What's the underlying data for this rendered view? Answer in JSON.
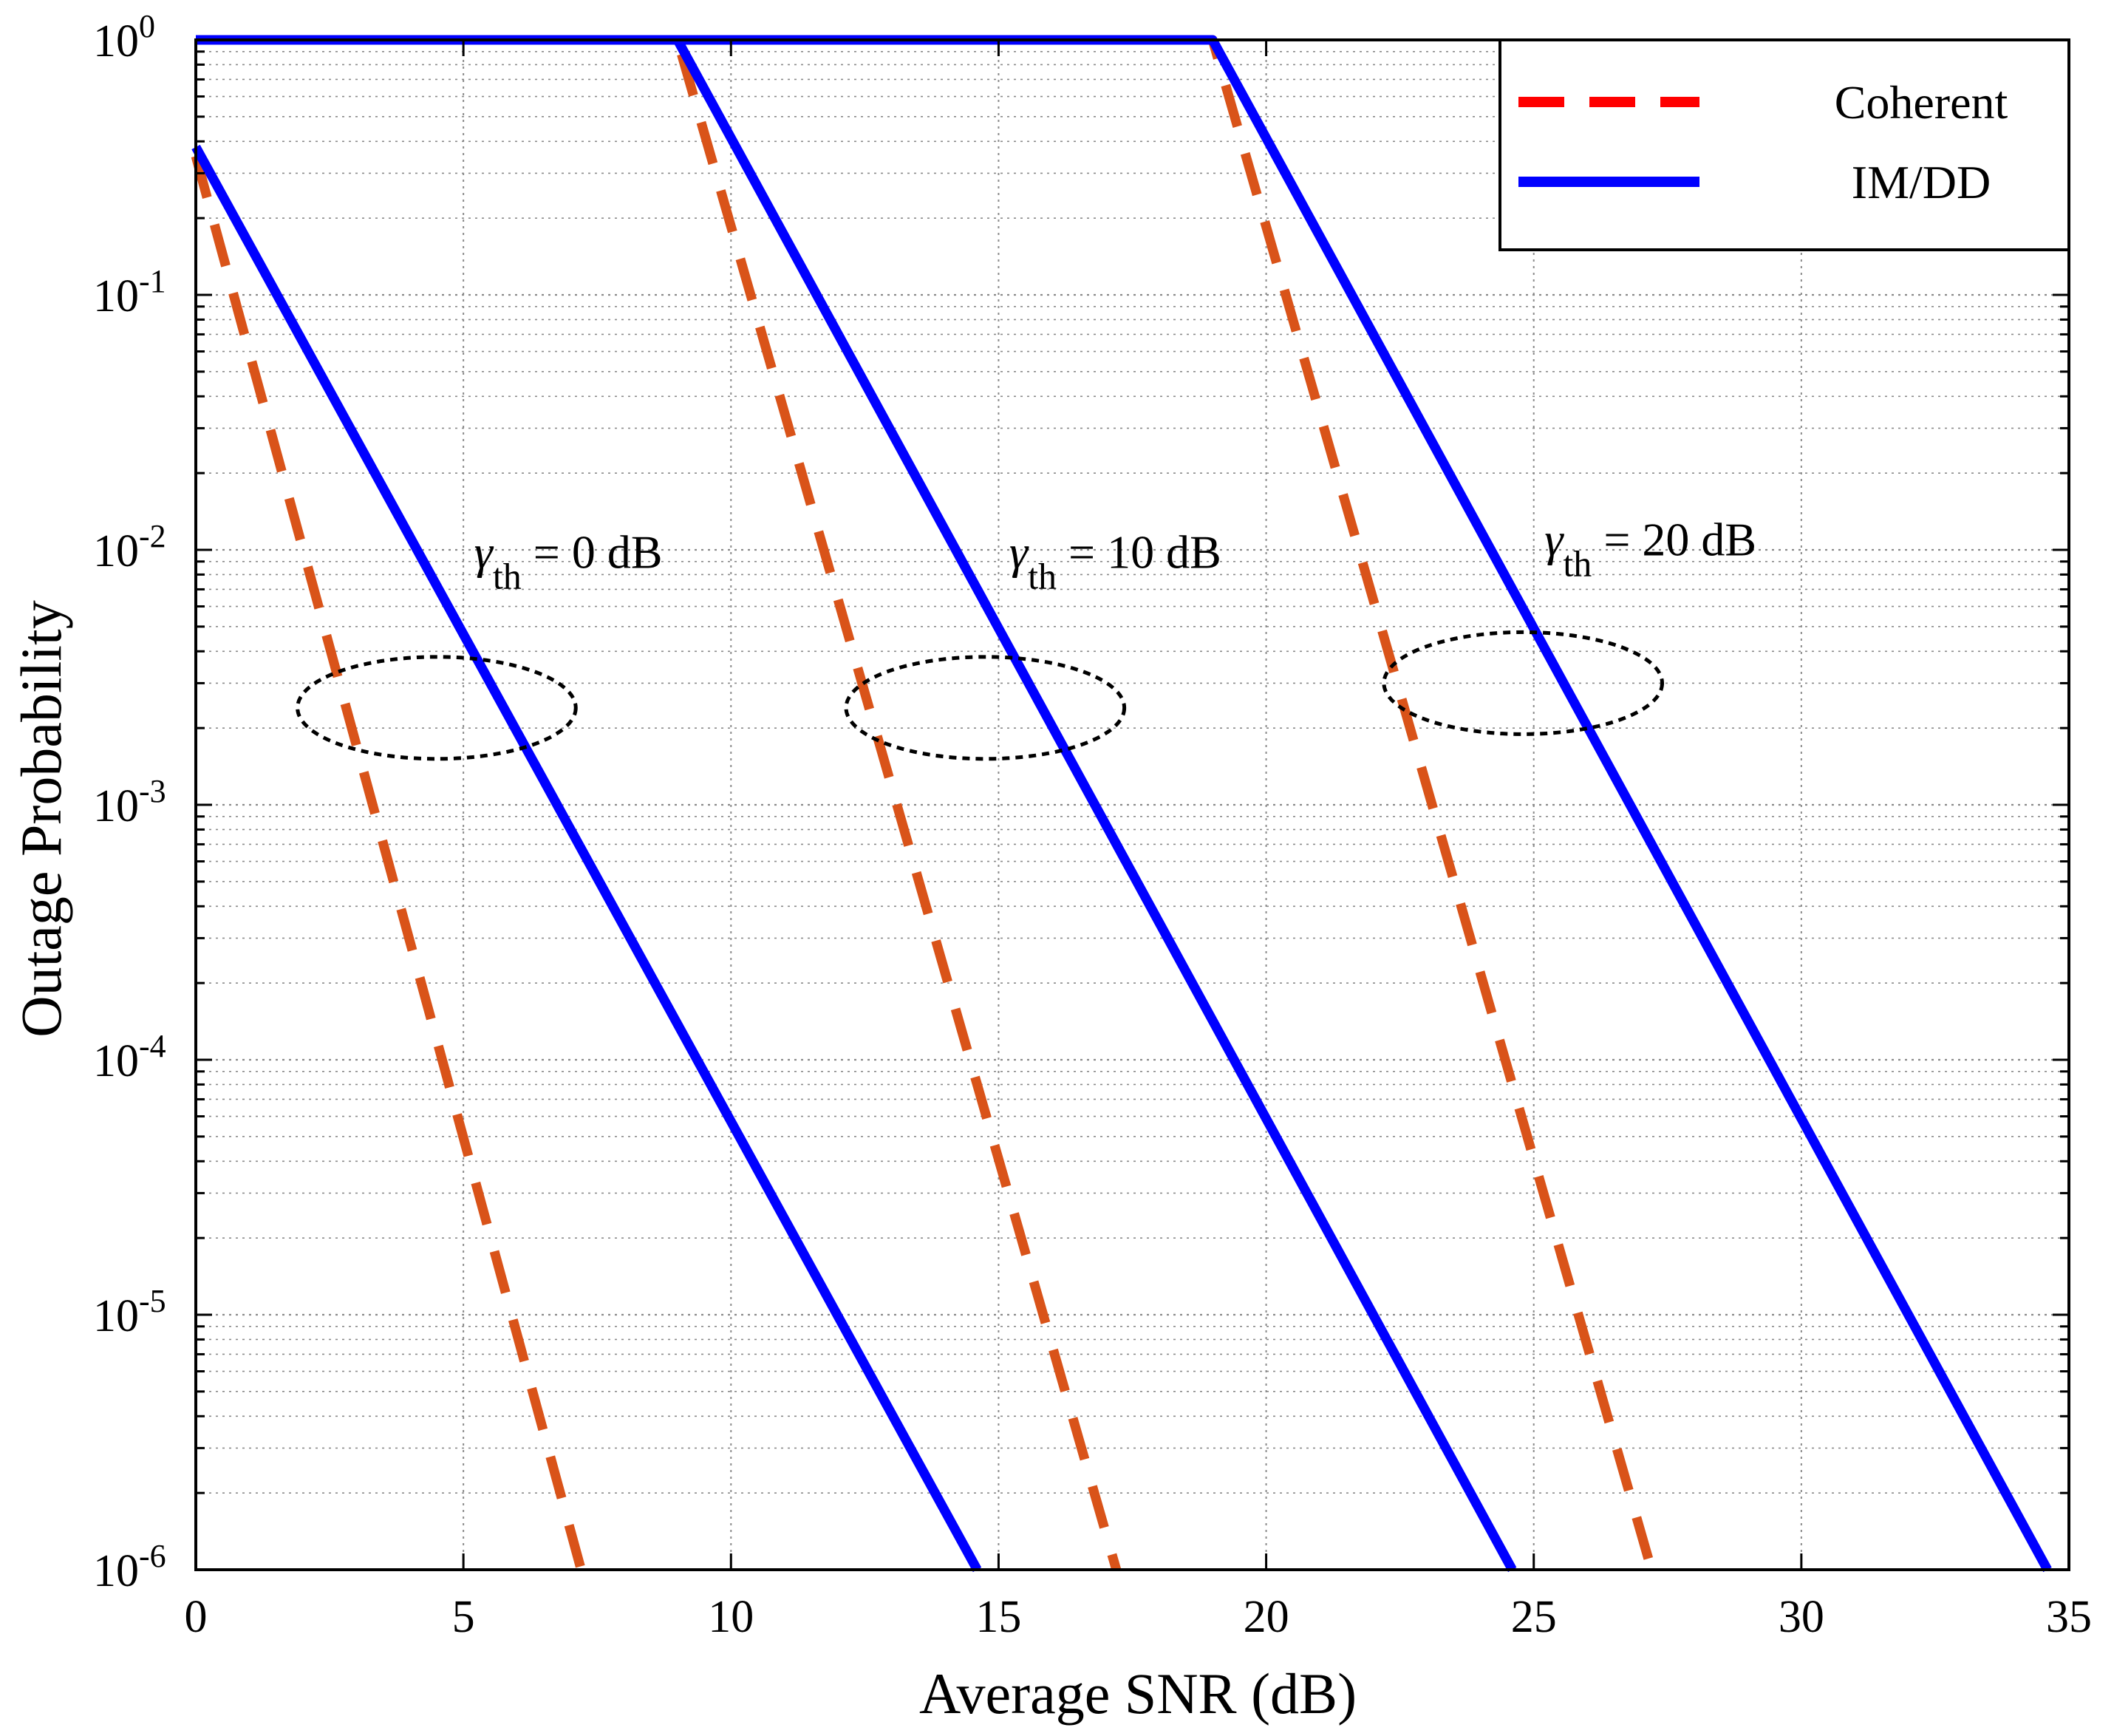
{
  "chart_data": {
    "type": "line",
    "title": "",
    "xlabel": "Average SNR (dB)",
    "ylabel": "Outage Probability",
    "xlim": [
      0,
      35
    ],
    "ylim": [
      1e-06,
      1
    ],
    "yscale": "log",
    "grid": true,
    "legend_position": "top-right",
    "x_ticks": [
      "0",
      "5",
      "10",
      "15",
      "20",
      "25",
      "30",
      "35"
    ],
    "y_ticks": [
      {
        "base": "10",
        "exp": "0"
      },
      {
        "base": "10",
        "exp": "-1"
      },
      {
        "base": "10",
        "exp": "-2"
      },
      {
        "base": "10",
        "exp": "-3"
      },
      {
        "base": "10",
        "exp": "-4"
      },
      {
        "base": "10",
        "exp": "-5"
      },
      {
        "base": "10",
        "exp": "-6"
      }
    ],
    "series": [
      {
        "name": "Coherent",
        "legend": "Coherent",
        "color": "#d95319",
        "legend_color": "#ff0000",
        "style": "dashed",
        "curves": [
          {
            "gamma_th_dB": 0,
            "x": [
              0,
              7.2
            ],
            "y": [
              0.35,
              1e-06
            ]
          },
          {
            "gamma_th_dB": 10,
            "x": [
              0,
              9,
              17.2
            ],
            "y": [
              1,
              1,
              1e-06
            ]
          },
          {
            "gamma_th_dB": 20,
            "x": [
              0,
              19,
              27.2
            ],
            "y": [
              1,
              1,
              1e-06
            ]
          }
        ]
      },
      {
        "name": "IM/DD",
        "legend": "IM/DD",
        "color": "#0000ff",
        "legend_color": "#0000ff",
        "style": "solid",
        "curves": [
          {
            "gamma_th_dB": 0,
            "x": [
              0,
              14.6
            ],
            "y": [
              0.38,
              1e-06
            ]
          },
          {
            "gamma_th_dB": 10,
            "x": [
              0,
              9,
              24.6
            ],
            "y": [
              1,
              1,
              1e-06
            ]
          },
          {
            "gamma_th_dB": 20,
            "x": [
              0,
              19,
              34.6
            ],
            "y": [
              1,
              1,
              1e-06
            ]
          }
        ]
      }
    ],
    "annotations": [
      {
        "symbol": "γ",
        "sub": "th",
        "rest": " = 0 dB",
        "x": 5.2,
        "y": 0.0085,
        "ellipse": {
          "cx": 4.5,
          "cy": 0.0024,
          "rx": 2.6,
          "decades": 0.4
        }
      },
      {
        "symbol": "γ",
        "sub": "th",
        "rest": " = 10 dB",
        "x": 15.2,
        "y": 0.0085,
        "ellipse": {
          "cx": 14.75,
          "cy": 0.0024,
          "rx": 2.6,
          "decades": 0.4
        }
      },
      {
        "symbol": "γ",
        "sub": "th",
        "rest": " = 20 dB",
        "x": 25.2,
        "y": 0.0095,
        "ellipse": {
          "cx": 24.8,
          "cy": 0.003,
          "rx": 2.6,
          "decades": 0.4
        }
      }
    ]
  }
}
